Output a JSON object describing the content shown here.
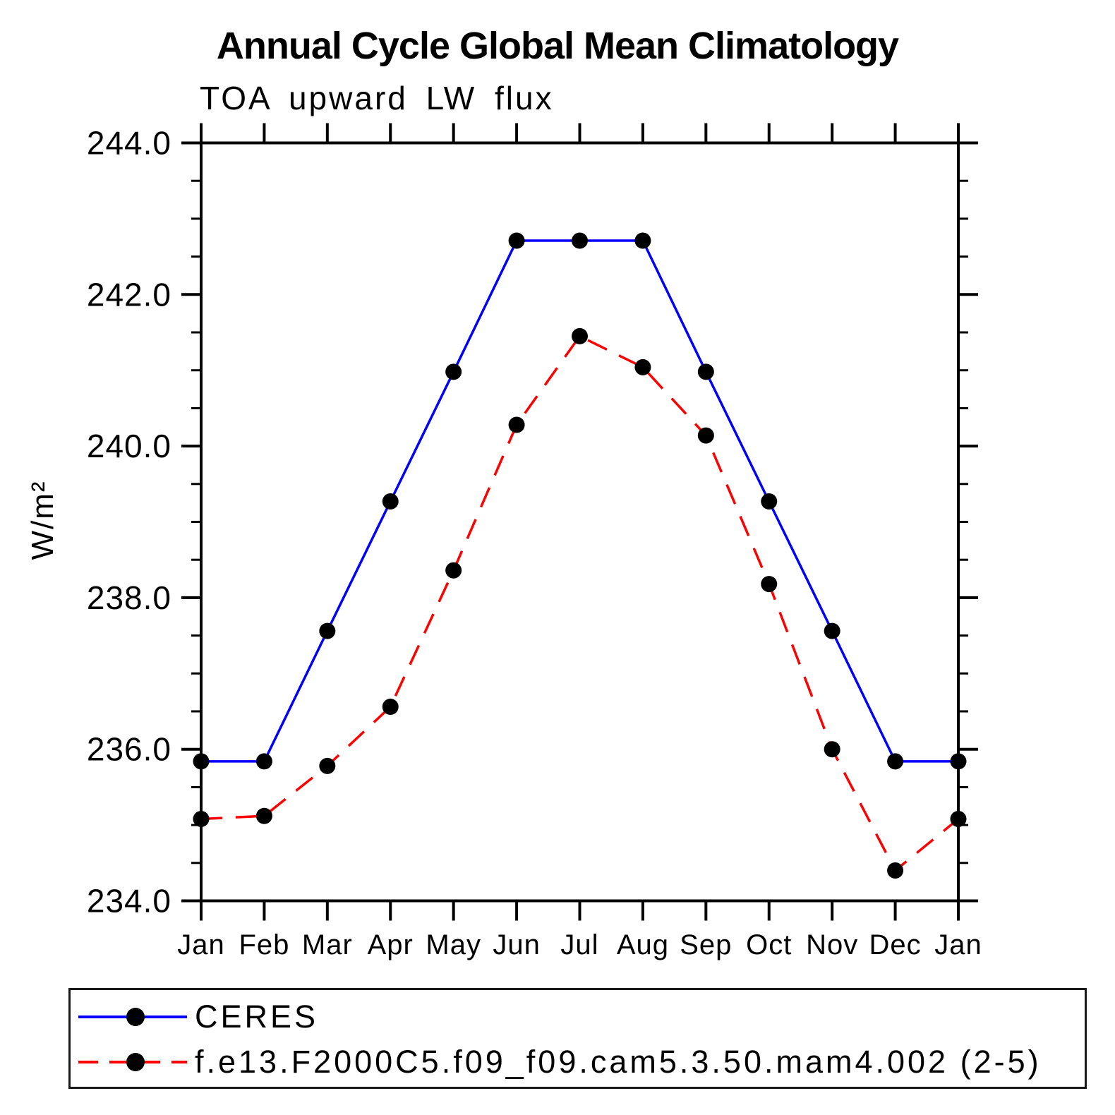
{
  "chart_data": {
    "type": "line",
    "title": "Annual Cycle Global Mean Climatology",
    "subtitle": "TOA upward LW flux",
    "ylabel": "W/m²",
    "xlabel": "",
    "categories": [
      "Jan",
      "Feb",
      "Mar",
      "Apr",
      "May",
      "Jun",
      "Jul",
      "Aug",
      "Sep",
      "Oct",
      "Nov",
      "Dec",
      "Jan"
    ],
    "ylim": [
      234.0,
      244.0
    ],
    "ytick_major_values": [
      234.0,
      236.0,
      238.0,
      240.0,
      242.0,
      244.0
    ],
    "ytick_labels": [
      "234.0",
      "236.0",
      "238.0",
      "240.0",
      "242.0",
      "244.0"
    ],
    "ytick_minor_step": 0.5,
    "grid": false,
    "legend_position": "bottom",
    "axis_color": "#000000",
    "marker_color": "#000000",
    "series": [
      {
        "name": "CERES",
        "color": "#0000ff",
        "style": "solid",
        "marker": "circle",
        "values": [
          235.84,
          235.84,
          237.56,
          239.27,
          240.98,
          242.71,
          242.71,
          242.71,
          240.98,
          239.27,
          237.56,
          235.84,
          235.84
        ]
      },
      {
        "name": "f.e13.F2000C5.f09_f09.cam5.3.50.mam4.002 (2-5)",
        "color": "#ff0000",
        "style": "dashed",
        "marker": "circle",
        "values": [
          235.08,
          235.12,
          235.78,
          236.56,
          238.36,
          240.28,
          241.45,
          241.04,
          240.14,
          238.18,
          236.0,
          234.4,
          235.08
        ]
      }
    ]
  }
}
